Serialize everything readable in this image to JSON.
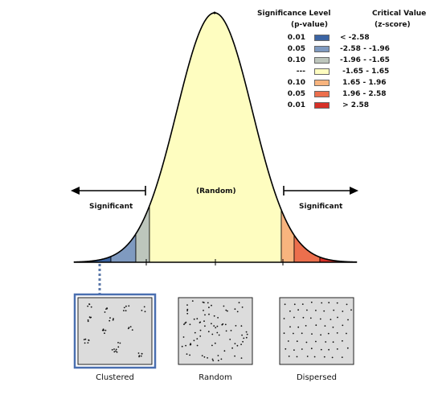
{
  "legend": {
    "header_p_line1": "Significance Level",
    "header_p_line2": "(p-value)",
    "header_z_line1": "Critical Value",
    "header_z_line2": "(z-score)",
    "rows": [
      {
        "p": "0.01",
        "z": "< -2.58",
        "color": "#3b64a3"
      },
      {
        "p": "0.05",
        "z": "-2.58 - -1.96",
        "color": "#7f9ac0"
      },
      {
        "p": "0.10",
        "z": "-1.96 - -1.65",
        "color": "#bdc6bc"
      },
      {
        "p": "---",
        "z": " -1.65 - 1.65",
        "color": "#fefdc0"
      },
      {
        "p": "0.10",
        "z": " 1.65 - 1.96",
        "color": "#f8b47e"
      },
      {
        "p": "0.05",
        "z": " 1.96 - 2.58",
        "color": "#ec6f4d"
      },
      {
        "p": "0.01",
        "z": " > 2.58",
        "color": "#d73027"
      }
    ]
  },
  "curve": {
    "random_label": "(Random)",
    "significant_left": "Significant",
    "significant_right": "Significant"
  },
  "patterns": {
    "clustered": "Clustered",
    "random": "Random",
    "dispersed": "Dispersed"
  },
  "colors": {
    "box_fill": "#dcdcdc",
    "box_border": "#222222",
    "highlight_border": "#4a6fb0",
    "outline": "#000000"
  }
}
